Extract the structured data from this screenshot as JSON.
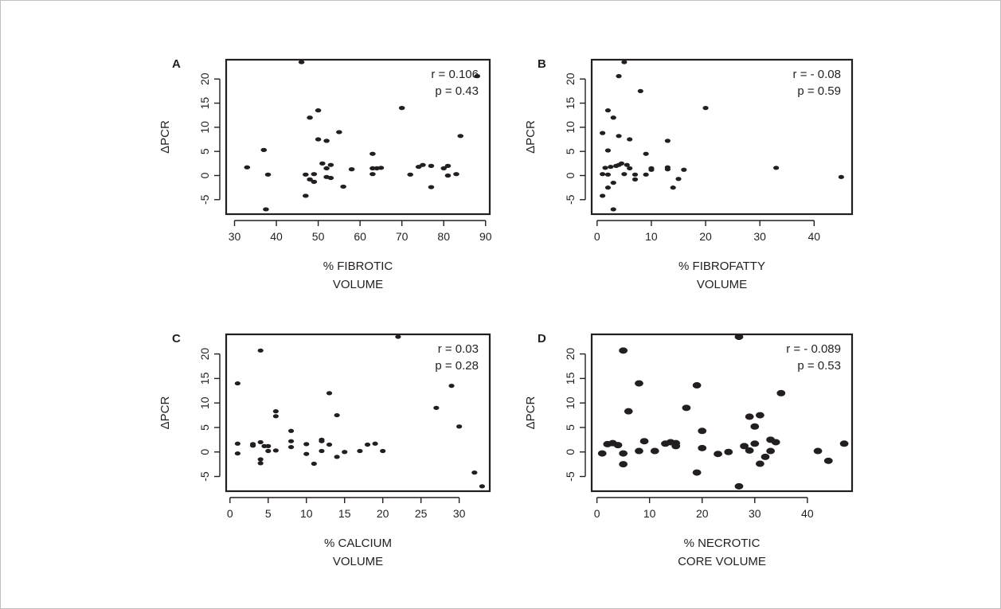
{
  "chart_data": [
    {
      "panel_label": "A",
      "type": "scatter",
      "xlabel": "% FIBROTIC",
      "xlabel2": "VOLUME",
      "ylabel": "ΔPCR",
      "xticks": [
        30,
        40,
        50,
        60,
        70,
        80,
        90
      ],
      "yticks": [
        -5,
        0,
        5,
        10,
        15,
        20
      ],
      "xlim": [
        28,
        91
      ],
      "ylim": [
        -8,
        24
      ],
      "annotation": [
        "r = 0.106",
        "p = 0.43"
      ],
      "points": [
        [
          33,
          1.7
        ],
        [
          37,
          5.3
        ],
        [
          37.5,
          -7
        ],
        [
          38,
          0.2
        ],
        [
          46,
          23.5
        ],
        [
          47,
          -4.2
        ],
        [
          47,
          0.2
        ],
        [
          48,
          -0.8
        ],
        [
          48,
          12
        ],
        [
          49,
          -1.3
        ],
        [
          49,
          0.3
        ],
        [
          50,
          7.5
        ],
        [
          50,
          13.5
        ],
        [
          51,
          2.5
        ],
        [
          52,
          7.2
        ],
        [
          52,
          1.5
        ],
        [
          52,
          -0.3
        ],
        [
          53,
          -0.5
        ],
        [
          53,
          2.2
        ],
        [
          55,
          9
        ],
        [
          56,
          -2.3
        ],
        [
          58,
          1.3
        ],
        [
          63,
          4.5
        ],
        [
          63,
          1.5
        ],
        [
          63,
          0.3
        ],
        [
          64,
          1.5
        ],
        [
          65,
          1.6
        ],
        [
          70,
          14
        ],
        [
          72,
          0.2
        ],
        [
          74,
          1.8
        ],
        [
          75,
          2.2
        ],
        [
          77,
          -2.4
        ],
        [
          77,
          2
        ],
        [
          80,
          1.5
        ],
        [
          81,
          2
        ],
        [
          81,
          0
        ],
        [
          83,
          0.3
        ],
        [
          84,
          8.2
        ],
        [
          88,
          20.6
        ]
      ]
    },
    {
      "panel_label": "B",
      "type": "scatter",
      "xlabel": "% FIBROFATTY",
      "xlabel2": "VOLUME",
      "ylabel": "ΔPCR",
      "xticks": [
        0,
        10,
        20,
        30,
        40
      ],
      "yticks": [
        -5,
        0,
        5,
        10,
        15,
        20
      ],
      "xlim": [
        -1,
        47
      ],
      "ylim": [
        -8,
        24
      ],
      "annotation": [
        "r = - 0.08",
        "p = 0.59"
      ],
      "points": [
        [
          1,
          8.8
        ],
        [
          1,
          -4.2
        ],
        [
          1,
          0.3
        ],
        [
          1.5,
          1.6
        ],
        [
          2,
          5.2
        ],
        [
          2,
          13.5
        ],
        [
          2,
          0.2
        ],
        [
          2,
          -2.5
        ],
        [
          2.5,
          1.8
        ],
        [
          3,
          12
        ],
        [
          3,
          -1.5
        ],
        [
          3,
          -7
        ],
        [
          3.5,
          2
        ],
        [
          4,
          8.2
        ],
        [
          4,
          20.6
        ],
        [
          4,
          2.2
        ],
        [
          4.5,
          2.5
        ],
        [
          5,
          23.5
        ],
        [
          5,
          0.3
        ],
        [
          5.5,
          2.2
        ],
        [
          6,
          7.5
        ],
        [
          6,
          1.5
        ],
        [
          7,
          -0.8
        ],
        [
          7,
          0.2
        ],
        [
          8,
          17.5
        ],
        [
          9,
          4.5
        ],
        [
          9,
          0.2
        ],
        [
          10,
          1.2
        ],
        [
          10,
          1.5
        ],
        [
          13,
          7.2
        ],
        [
          13,
          1.7
        ],
        [
          13,
          1.3
        ],
        [
          14,
          -2.5
        ],
        [
          15,
          -0.7
        ],
        [
          16,
          1.2
        ],
        [
          20,
          14
        ],
        [
          33,
          1.6
        ],
        [
          45,
          -0.3
        ]
      ]
    },
    {
      "panel_label": "C",
      "type": "scatter",
      "xlabel": "% CALCIUM",
      "xlabel2": "VOLUME",
      "ylabel": "ΔPCR",
      "xticks": [
        0,
        5,
        10,
        15,
        20,
        25,
        30
      ],
      "yticks": [
        -5,
        0,
        5,
        10,
        15,
        20
      ],
      "xlim": [
        -0.5,
        34
      ],
      "ylim": [
        -8,
        24
      ],
      "annotation": [
        "r = 0.03",
        "p = 0.28"
      ],
      "points": [
        [
          1,
          14
        ],
        [
          1,
          1.7
        ],
        [
          1,
          -0.3
        ],
        [
          3,
          1.6
        ],
        [
          3,
          1.3
        ],
        [
          4,
          20.7
        ],
        [
          4,
          2
        ],
        [
          4,
          -1.5
        ],
        [
          4,
          -2.3
        ],
        [
          4.5,
          1.2
        ],
        [
          5,
          1.2
        ],
        [
          5,
          0.2
        ],
        [
          6,
          8.3
        ],
        [
          6,
          7.3
        ],
        [
          6,
          0.3
        ],
        [
          8,
          4.3
        ],
        [
          8,
          2.2
        ],
        [
          8,
          1
        ],
        [
          10,
          1.6
        ],
        [
          10,
          -0.4
        ],
        [
          11,
          -2.4
        ],
        [
          12,
          2.5
        ],
        [
          12,
          2.2
        ],
        [
          12,
          0.2
        ],
        [
          13,
          12
        ],
        [
          13,
          1.5
        ],
        [
          14,
          7.5
        ],
        [
          14,
          -1
        ],
        [
          15,
          0
        ],
        [
          17,
          0.2
        ],
        [
          18,
          1.5
        ],
        [
          19,
          1.7
        ],
        [
          20,
          0.2
        ],
        [
          22,
          23.5
        ],
        [
          27,
          9
        ],
        [
          29,
          13.5
        ],
        [
          30,
          5.2
        ],
        [
          32,
          -4.2
        ],
        [
          33,
          -7
        ]
      ]
    },
    {
      "panel_label": "D",
      "type": "scatter",
      "xlabel": "% NECROTIC",
      "xlabel2": "CORE VOLUME",
      "ylabel": "ΔPCR",
      "xticks": [
        0,
        10,
        20,
        30,
        40
      ],
      "yticks": [
        -5,
        0,
        5,
        10,
        15,
        20
      ],
      "xlim": [
        -1,
        48.5
      ],
      "ylim": [
        -8,
        24
      ],
      "annotation": [
        "r = - 0.089",
        "p = 0.53"
      ],
      "points": [
        [
          1,
          -0.3
        ],
        [
          2,
          1.6
        ],
        [
          3,
          1.8
        ],
        [
          4,
          1.4
        ],
        [
          5,
          20.7
        ],
        [
          5,
          -0.3
        ],
        [
          5,
          -2.5
        ],
        [
          6,
          8.3
        ],
        [
          8,
          14
        ],
        [
          8,
          0.2
        ],
        [
          9,
          2.2
        ],
        [
          11,
          0.2
        ],
        [
          13,
          1.7
        ],
        [
          14,
          2
        ],
        [
          15,
          1.8
        ],
        [
          15,
          1.2
        ],
        [
          17,
          9
        ],
        [
          19,
          13.6
        ],
        [
          19,
          -4.2
        ],
        [
          20,
          4.3
        ],
        [
          20,
          0.8
        ],
        [
          23,
          -0.4
        ],
        [
          25,
          0
        ],
        [
          27,
          23.5
        ],
        [
          27,
          -7
        ],
        [
          28,
          1.2
        ],
        [
          29,
          7.2
        ],
        [
          29,
          0.3
        ],
        [
          30,
          5.2
        ],
        [
          30,
          1.7
        ],
        [
          31,
          7.5
        ],
        [
          31,
          -2.4
        ],
        [
          32,
          -1
        ],
        [
          33,
          2.5
        ],
        [
          33,
          0.2
        ],
        [
          34,
          2
        ],
        [
          35,
          12
        ],
        [
          42,
          0.2
        ],
        [
          44,
          -1.8
        ],
        [
          47,
          1.7
        ]
      ]
    }
  ]
}
